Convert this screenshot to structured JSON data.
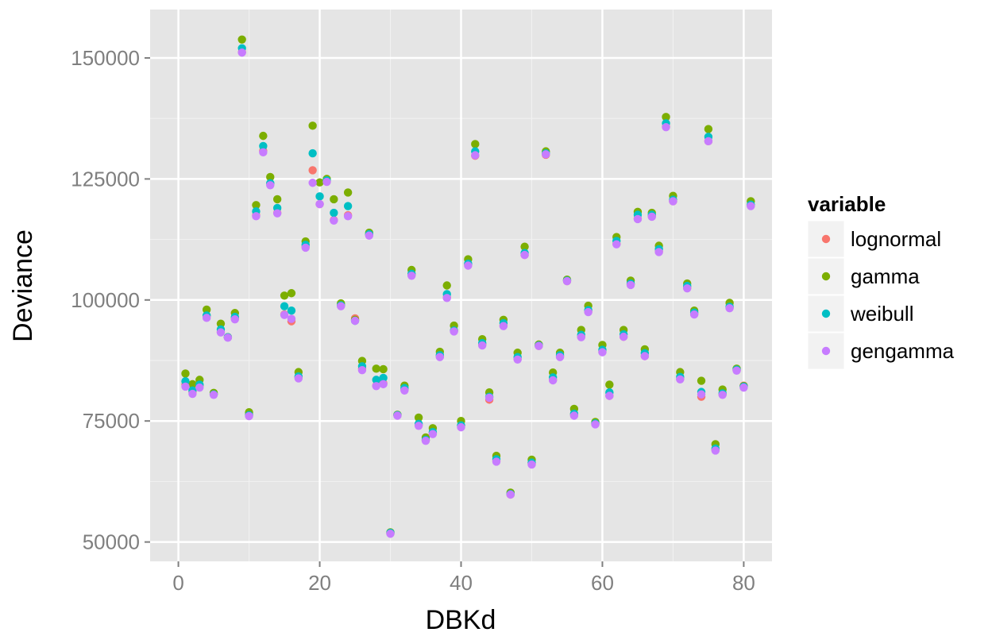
{
  "chart_data": {
    "type": "scatter",
    "title": "",
    "xlabel": "DBKd",
    "ylabel": "Deviance",
    "xlim": [
      -4,
      84
    ],
    "ylim": [
      46000,
      160000
    ],
    "xticks": [
      0,
      20,
      40,
      60,
      80
    ],
    "yticks": [
      50000,
      75000,
      100000,
      125000,
      150000
    ],
    "grid": true,
    "legend": {
      "title": "variable",
      "placement": "right"
    },
    "x": [
      1,
      2,
      3,
      4,
      5,
      6,
      7,
      8,
      9,
      10,
      11,
      12,
      13,
      14,
      15,
      16,
      17,
      18,
      19,
      20,
      21,
      22,
      23,
      24,
      25,
      26,
      27,
      28,
      29,
      30,
      31,
      32,
      33,
      34,
      35,
      36,
      37,
      38,
      39,
      40,
      41,
      42,
      43,
      44,
      45,
      46,
      47,
      48,
      49,
      50,
      51,
      52,
      53,
      54,
      55,
      56,
      57,
      58,
      59,
      60,
      61,
      62,
      63,
      64,
      65,
      66,
      67,
      68,
      69,
      70,
      71,
      72,
      73,
      74,
      75,
      76,
      77,
      78,
      79,
      80,
      81
    ],
    "series": [
      {
        "name": "lognormal",
        "color": "#F8766D",
        "values": [
          82500,
          81000,
          82300,
          96700,
          80600,
          93400,
          92300,
          96200,
          151200,
          76300,
          117500,
          130800,
          124000,
          118000,
          97000,
          95600,
          84000,
          111000,
          126800,
          119800,
          124500,
          116500,
          98800,
          117500,
          96200,
          85800,
          113500,
          82300,
          82800,
          51800,
          76200,
          81500,
          105200,
          74200,
          71000,
          72500,
          88300,
          100500,
          93600,
          74000,
          107300,
          129800,
          90800,
          79400,
          66800,
          94700,
          59800,
          87800,
          109300,
          66200,
          90500,
          130000,
          83500,
          88300,
          103900,
          76300,
          92400,
          97600,
          74400,
          89300,
          80200,
          111600,
          92400,
          103200,
          116800,
          88400,
          117300,
          110000,
          135800,
          120400,
          83700,
          102500,
          97100,
          80000,
          132800,
          69000,
          80500,
          98400,
          85500,
          82300,
          119500
        ]
      },
      {
        "name": "gamma",
        "color": "#7CAE00",
        "values": [
          84800,
          82600,
          83500,
          98000,
          80800,
          95100,
          92300,
          97300,
          153800,
          76800,
          119600,
          133900,
          125400,
          120800,
          100900,
          101400,
          85100,
          112100,
          136000,
          124300,
          125000,
          120800,
          99300,
          122200,
          95900,
          87400,
          113900,
          85800,
          85700,
          52000,
          76300,
          82300,
          106200,
          75700,
          71600,
          73500,
          89300,
          103000,
          94700,
          75000,
          108400,
          132200,
          91900,
          80900,
          67800,
          95900,
          60200,
          89100,
          111000,
          67000,
          90800,
          130700,
          85000,
          89100,
          104200,
          77500,
          93800,
          98800,
          74800,
          90700,
          82500,
          113000,
          93800,
          104000,
          118200,
          89800,
          118000,
          111200,
          137800,
          121500,
          85100,
          103400,
          97800,
          83300,
          135300,
          70200,
          81500,
          99400,
          85800,
          82200,
          120400
        ]
      },
      {
        "name": "weibull",
        "color": "#00BFC4",
        "values": [
          83200,
          81300,
          82500,
          96800,
          80500,
          93900,
          92300,
          96500,
          152000,
          76200,
          118300,
          131800,
          124100,
          119000,
          98700,
          97800,
          84200,
          111400,
          130300,
          121400,
          124700,
          118000,
          98900,
          119400,
          95700,
          86300,
          113600,
          83500,
          83900,
          51900,
          76200,
          81800,
          105400,
          74400,
          71100,
          72700,
          88600,
          101200,
          93700,
          74100,
          107500,
          130700,
          91100,
          80000,
          67100,
          95200,
          59900,
          88200,
          109700,
          66400,
          90600,
          130300,
          84000,
          88600,
          104000,
          76500,
          92800,
          97900,
          74500,
          89700,
          80900,
          112200,
          92900,
          103400,
          117600,
          89000,
          117600,
          110500,
          136500,
          120700,
          84100,
          102900,
          97400,
          81000,
          133700,
          69300,
          80700,
          98600,
          85600,
          82100,
          119700
        ]
      },
      {
        "name": "gengamma",
        "color": "#C77CFF",
        "values": [
          82100,
          80600,
          81900,
          96300,
          80400,
          93300,
          92200,
          96000,
          151100,
          76000,
          117300,
          130500,
          123700,
          117900,
          96900,
          96100,
          83800,
          110800,
          124200,
          119800,
          124400,
          116400,
          98700,
          117300,
          95700,
          85500,
          113300,
          82200,
          82600,
          51700,
          76100,
          81300,
          105000,
          74000,
          70900,
          72300,
          88200,
          100400,
          93500,
          73700,
          107100,
          129900,
          90600,
          79800,
          66600,
          94600,
          59800,
          87700,
          109300,
          66000,
          90500,
          130100,
          83400,
          88200,
          103900,
          76100,
          92300,
          97500,
          74300,
          89200,
          80200,
          111500,
          92400,
          103100,
          116700,
          88400,
          117200,
          109900,
          135700,
          120400,
          83600,
          102400,
          97000,
          80500,
          132800,
          68900,
          80400,
          98300,
          85400,
          81900,
          119400
        ]
      }
    ]
  }
}
